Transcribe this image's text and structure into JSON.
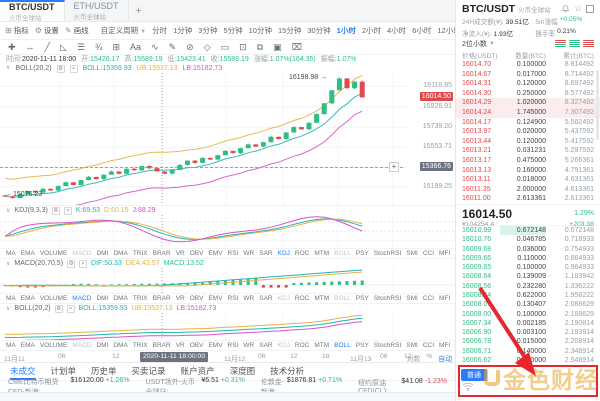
{
  "colors": {
    "up": "#2ebd85",
    "down": "#e2494d",
    "accent": "#2b7cf7",
    "k_line": "#26b3b3",
    "d_line": "#e3b345",
    "j_line": "#d653c5",
    "annotation": "#e8262d"
  },
  "tabs": {
    "items": [
      {
        "pair": "BTC/USDT",
        "exchange": "火币全球站",
        "active": true
      },
      {
        "pair": "ETH/USDT",
        "exchange": "火币全球站",
        "active": false
      }
    ],
    "add_label": "+"
  },
  "toolbar": {
    "indicators": "指标",
    "settings": "设置",
    "drawing": "画线",
    "custom_period": "自定义周期",
    "timeframes": [
      "分时",
      "1分钟",
      "3分钟",
      "5分钟",
      "10分钟",
      "15分钟",
      "30分钟",
      "1小时",
      "2小时",
      "4小时",
      "6小时",
      "12小时",
      "1日",
      "1s"
    ],
    "active_timeframe": "1小时",
    "window_mode": "单窗口"
  },
  "draw_tools": [
    {
      "name": "crosshair-icon",
      "glyph": "✚"
    },
    {
      "name": "measure-icon",
      "glyph": "↔"
    },
    {
      "name": "trend-line-icon",
      "glyph": "╱"
    },
    {
      "name": "angle-icon",
      "glyph": "◺"
    },
    {
      "name": "parallel-lines-icon",
      "glyph": "☰"
    },
    {
      "name": "fibonacci-icon",
      "glyph": "¾"
    },
    {
      "name": "grid-icon",
      "glyph": "⊞"
    },
    {
      "name": "text-icon",
      "glyph": "Aa"
    },
    {
      "name": "wave-icon",
      "glyph": "∿"
    },
    {
      "name": "brush-icon",
      "glyph": "✎"
    },
    {
      "name": "eraser-icon",
      "glyph": "⊘"
    },
    {
      "name": "magnet-icon",
      "glyph": "◇"
    },
    {
      "name": "ruler-icon",
      "glyph": "▭"
    },
    {
      "name": "lock-icon",
      "glyph": "⊡"
    },
    {
      "name": "copy-icon",
      "glyph": "⧉"
    },
    {
      "name": "screenshot-icon",
      "glyph": "▣"
    },
    {
      "name": "delete-icon",
      "glyph": "⌧"
    }
  ],
  "ohlc": {
    "time_label": "时间:",
    "time": "2020-11-11 18:00",
    "open_label": "开:",
    "open": "15426.17",
    "high_label": "高:",
    "high": "15589.19",
    "low_label": "低:",
    "low": "15423.41",
    "close_label": "收:",
    "close": "15589.19",
    "change_label": "涨幅:",
    "change": "1.07%(164.35)",
    "amp_label": "振幅:",
    "amp": "1.07%"
  },
  "boll_main": {
    "name": "BOLL(20,2)",
    "boll": "BOLL:15359.93",
    "ub": "UB:15537.13",
    "lb": "LB:15182.73"
  },
  "main_chart": {
    "high_marker": "16198.98 →",
    "low_marker": "←15076.23",
    "y_axis": [
      "16116.85",
      "15926.91",
      "15739.20",
      "15553.71",
      "15189.25"
    ],
    "current_price": "16014.50",
    "crosshair_price": "15366.76",
    "crosshair_time": "2020-11-11 18:00:00",
    "x_axis": [
      "11月11",
      "06",
      "12",
      "11月12",
      "06",
      "12",
      "18",
      "11月13",
      "06",
      "12"
    ],
    "scale_controls": [
      "对数",
      "%",
      "自动"
    ]
  },
  "kdj": {
    "name": "KDJ(9,3,3)",
    "k": "K:69.53",
    "d": "D:60.15",
    "j": "J:88.29"
  },
  "macd": {
    "name": "MACD(20,70,5)",
    "dif": "DIF:50.33",
    "dea": "DEA:43.57",
    "macd": "MACD:13.52"
  },
  "boll_sub": {
    "name": "BOLL(20,2)",
    "boll": "BOLL:15359.93",
    "ub": "UB:15537.13",
    "lb": "LB:15182.73"
  },
  "indicator_rows": [
    {
      "items": [
        "MA",
        "EMA",
        "VOLUME",
        "MACD",
        "DMI",
        "DMA",
        "TRIX",
        "BRAR",
        "VR",
        "OBV",
        "EMV",
        "RSI",
        "WR",
        "SAR",
        "KDJ",
        "ROC",
        "MTM",
        "BOLL",
        "PSY",
        "StochRSI",
        "SMI",
        "CCI",
        "MFI",
        "ATR",
        "BBW",
        "SKDJ",
        "BIAS"
      ],
      "active": "KDJ",
      "dim": [
        "MACD",
        "BOLL"
      ]
    },
    {
      "items": [
        "MA",
        "EMA",
        "VOLUME",
        "MACD",
        "DMI",
        "DMA",
        "TRIX",
        "BRAR",
        "VR",
        "OBV",
        "EMV",
        "RSI",
        "WR",
        "SAR",
        "KDJ",
        "ROC",
        "MTM",
        "BOLL",
        "PSY",
        "StochRSI",
        "SMI",
        "CCI",
        "MFI",
        "ATR",
        "BBW"
      ],
      "active": "MACD",
      "dim": [
        "KDJ",
        "BOLL"
      ]
    },
    {
      "items": [
        "MA",
        "EMA",
        "VOLUME",
        "MACD",
        "DMI",
        "DMA",
        "TRIX",
        "BRAR",
        "VR",
        "OBV",
        "EMV",
        "RSI",
        "WR",
        "SAR",
        "KDJ",
        "ROC",
        "MTM",
        "BOLL",
        "PSY",
        "StochRSI",
        "SMI",
        "CCI",
        "MFI",
        "ATR",
        "BBW"
      ],
      "active": "BOLL",
      "dim": [
        "MACD",
        "KDJ"
      ]
    }
  ],
  "bottom_tabs": [
    "未成交",
    "计划单",
    "历史单",
    "买卖记录",
    "账户资产",
    "深度图",
    "技术分析"
  ],
  "active_bottom_tab": "未成交",
  "ticker": [
    {
      "label": "CME比特币期货CFD-新浪:",
      "value": "$16120.00",
      "change": "+1.26%",
      "dir": "up"
    },
    {
      "label": "USDT场外-火币全球站:",
      "value": "¥6.51",
      "change": "+0.31%",
      "dir": "up"
    },
    {
      "label": "伦敦金-新浪:",
      "value": "$1876.81",
      "change": "+0.71%",
      "dir": "up"
    },
    {
      "label": "纽约原油CFD(CL):",
      "value": "$41.08",
      "change": "-1.23%",
      "dir": "down"
    }
  ],
  "orderbook": {
    "pair": "BTC/USDT",
    "exchange": "火币全球站",
    "stats": [
      {
        "label": "24H成交额(¥):",
        "value": "39.51亿",
        "color": "dark"
      },
      {
        "label": "5m涨幅",
        "value": "+0.05%",
        "color": "up"
      },
      {
        "label": "净流入(¥):",
        "value": "1.93亿",
        "color": "dark"
      },
      {
        "label": "换手率",
        "value": "0.21%",
        "color": "dark"
      }
    ],
    "decimal": "2位小数",
    "columns": [
      "价格(USDT)",
      "数量(BTC)",
      "累计(BTC)"
    ],
    "asks": [
      [
        "16014.70",
        "0.100000",
        "8.814492",
        false
      ],
      [
        "16014.67",
        "0.017000",
        "8.714492",
        false
      ],
      [
        "16014.31",
        "0.120000",
        "8.697492",
        false
      ],
      [
        "16014.30",
        "0.250000",
        "8.577492",
        false
      ],
      [
        "16014.29",
        "1.020000",
        "8.327492",
        true
      ],
      [
        "16014.24",
        "1.745000",
        "7.307492",
        true
      ],
      [
        "16014.17",
        "0.124900",
        "5.562492",
        false
      ],
      [
        "16013.97",
        "0.020000",
        "5.437592",
        false
      ],
      [
        "16013.44",
        "0.120000",
        "5.417592",
        false
      ],
      [
        "16013.21",
        "0.031231",
        "5.297592",
        false
      ],
      [
        "16013.17",
        "0.475000",
        "5.266361",
        false
      ],
      [
        "16013.13",
        "0.160000",
        "4.791361",
        false
      ],
      [
        "16013.11",
        "0.018000",
        "4.631361",
        false
      ],
      [
        "16011.35",
        "2.000000",
        "4.613361",
        false
      ],
      [
        "16011.00",
        "2.613361",
        "2.613361",
        false
      ]
    ],
    "last": {
      "price": "16014.50",
      "cny": "¥104254.4",
      "pct": "1.29%",
      "change": "+203.38"
    },
    "bids": [
      [
        "16010.99",
        "0.672148",
        "0.672148",
        true
      ],
      [
        "16010.76",
        "0.046785",
        "0.718933",
        false
      ],
      [
        "16009.68",
        "0.036000",
        "0.754933",
        false
      ],
      [
        "16009.66",
        "0.110000",
        "0.864933",
        false
      ],
      [
        "16009.65",
        "0.100000",
        "0.964933",
        false
      ],
      [
        "16008.64",
        "0.139009",
        "1.103942",
        false
      ],
      [
        "16008.56",
        "0.232280",
        "1.336222",
        false
      ],
      [
        "16008.44",
        "0.622000",
        "1.958222",
        false
      ],
      [
        "16008.01",
        "0.130407",
        "2.088629",
        false
      ],
      [
        "16008.00",
        "0.100000",
        "2.188629",
        false
      ],
      [
        "16007.34",
        "0.002185",
        "2.190814",
        false
      ],
      [
        "16006.90",
        "0.003100",
        "2.193914",
        false
      ],
      [
        "16006.78",
        "0.015000",
        "2.208914",
        false
      ],
      [
        "16006.71",
        "0.140000",
        "2.348914",
        false
      ],
      [
        "16006.62",
        "0.200000",
        "2.548914",
        false
      ]
    ],
    "mode_label": "普通"
  },
  "watermark": {
    "text": "金色财经"
  },
  "chart_data": {
    "type": "candlestick",
    "timeframe": "1小时",
    "high": 16198.98,
    "low": 15076.23,
    "last": 16014.5,
    "y_gridlines": [
      16116.85,
      15926.91,
      15739.2,
      15553.71,
      15366.76,
      15189.25
    ],
    "approx_closes": [
      15100,
      15085,
      15120,
      15150,
      15135,
      15170,
      15155,
      15195,
      15230,
      15205,
      15250,
      15280,
      15260,
      15300,
      15330,
      15310,
      15355,
      15340,
      15380,
      15360,
      15330,
      15310,
      15345,
      15390,
      15430,
      15410,
      15455,
      15440,
      15480,
      15520,
      15500,
      15545,
      15580,
      15560,
      15600,
      15650,
      15630,
      15690,
      15740,
      15720,
      15780,
      15860,
      15960,
      16080,
      16190,
      16100,
      16160,
      16015
    ],
    "indicators": {
      "kdj": {
        "k": 69.53,
        "d": 60.15,
        "j": 88.29
      },
      "macd": {
        "dif": 50.33,
        "dea": 43.57,
        "macd": 13.52
      },
      "boll": {
        "mid": 15359.93,
        "ub": 15537.13,
        "lb": 15182.73
      }
    }
  }
}
